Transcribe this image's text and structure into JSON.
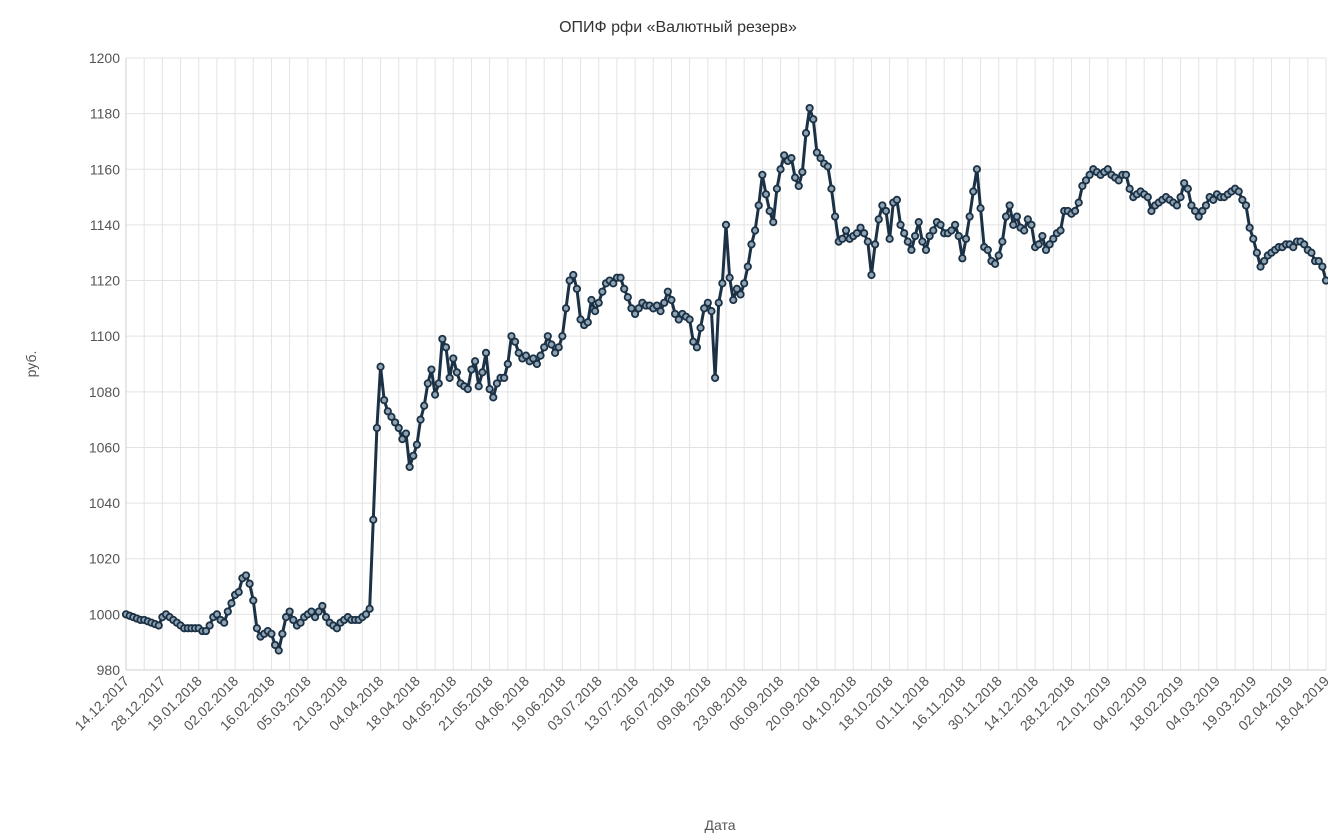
{
  "chart_data": {
    "type": "line",
    "title": "ОПИФ рфи «Валютный резерв»",
    "xlabel": "Дата",
    "ylabel": "руб.",
    "ylim": [
      980,
      1200
    ],
    "y_ticks": [
      980,
      1000,
      1020,
      1040,
      1060,
      1080,
      1100,
      1120,
      1140,
      1160,
      1180,
      1200
    ],
    "x_tick_labels": [
      "14.12.2017",
      "28.12.2017",
      "19.01.2018",
      "02.02.2018",
      "16.02.2018",
      "05.03.2018",
      "21.03.2018",
      "04.04.2018",
      "18.04.2018",
      "04.05.2018",
      "21.05.2018",
      "04.06.2018",
      "19.06.2018",
      "03.07.2018",
      "13.07.2018",
      "26.07.2018",
      "09.08.2018",
      "23.08.2018",
      "06.09.2018",
      "20.09.2018",
      "04.10.2018",
      "18.10.2018",
      "01.11.2018",
      "16.11.2018",
      "30.11.2018",
      "14.12.2018",
      "28.12.2018",
      "21.01.2019",
      "04.02.2019",
      "18.02.2019",
      "04.03.2019",
      "19.03.2019",
      "02.04.2019",
      "18.04.2019"
    ],
    "grid": true,
    "legend": "none",
    "colors": {
      "line": "#1b3145",
      "point_fill": "#8fa3b3",
      "grid": "#e3e3e3"
    },
    "series": [
      {
        "values": [
          1000,
          999.5,
          999,
          998.5,
          998,
          998,
          997.5,
          997,
          996.5,
          996,
          999,
          1000,
          999,
          998,
          997,
          996,
          995,
          995,
          995,
          995,
          995,
          994,
          994,
          996,
          999,
          1000,
          998,
          997,
          1001,
          1004,
          1007,
          1008,
          1013,
          1014,
          1011,
          1005,
          995,
          992,
          993,
          994,
          993,
          989,
          987,
          993,
          999,
          1001,
          998,
          996,
          997,
          999,
          1000,
          1001,
          999,
          1001,
          1003,
          999,
          997,
          996,
          995,
          997,
          998,
          999,
          998,
          998,
          998,
          999,
          1000,
          1002,
          1034,
          1067,
          1089,
          1077,
          1073,
          1071,
          1069,
          1067,
          1063,
          1065,
          1053,
          1057,
          1061,
          1070,
          1075,
          1083,
          1088,
          1079,
          1083,
          1099,
          1096,
          1085,
          1092,
          1087,
          1083,
          1082,
          1081,
          1088,
          1091,
          1082,
          1087,
          1094,
          1081,
          1078,
          1083,
          1085,
          1085,
          1090,
          1100,
          1098,
          1094,
          1092,
          1093,
          1091,
          1092,
          1090,
          1093,
          1096,
          1100,
          1097,
          1094,
          1096,
          1100,
          1110,
          1120,
          1122,
          1117,
          1106,
          1104,
          1105,
          1113,
          1109,
          1112,
          1116,
          1119,
          1120,
          1119,
          1121,
          1121,
          1117,
          1114,
          1110,
          1108,
          1110,
          1112,
          1111,
          1111,
          1110,
          1111,
          1109,
          1112,
          1116,
          1113,
          1108,
          1106,
          1108,
          1107,
          1106,
          1098,
          1096,
          1103,
          1110,
          1112,
          1109,
          1085,
          1112,
          1119,
          1140,
          1121,
          1113,
          1117,
          1115,
          1119,
          1125,
          1133,
          1138,
          1147,
          1158,
          1151,
          1145,
          1141,
          1153,
          1160,
          1165,
          1163,
          1164,
          1157,
          1154,
          1159,
          1173,
          1182,
          1178,
          1166,
          1164,
          1162,
          1161,
          1153,
          1143,
          1134,
          1135,
          1138,
          1135,
          1136,
          1137,
          1139,
          1137,
          1134,
          1122,
          1133,
          1142,
          1147,
          1145,
          1135,
          1148,
          1149,
          1140,
          1137,
          1134,
          1131,
          1136,
          1141,
          1134,
          1131,
          1136,
          1138,
          1141,
          1140,
          1137,
          1137,
          1138,
          1140,
          1136,
          1128,
          1135,
          1143,
          1152,
          1160,
          1146,
          1132,
          1131,
          1127,
          1126,
          1129,
          1134,
          1143,
          1147,
          1140,
          1143,
          1139,
          1138,
          1142,
          1140,
          1132,
          1133,
          1136,
          1131,
          1133,
          1135,
          1137,
          1138,
          1145,
          1145,
          1144,
          1145,
          1148,
          1154,
          1156,
          1158,
          1160,
          1159,
          1158,
          1159,
          1160,
          1158,
          1157,
          1156,
          1158,
          1158,
          1153,
          1150,
          1151,
          1152,
          1151,
          1150,
          1145,
          1147,
          1148,
          1149,
          1150,
          1149,
          1148,
          1147,
          1150,
          1155,
          1153,
          1147,
          1145,
          1143,
          1145,
          1147,
          1150,
          1149,
          1151,
          1150,
          1150,
          1151,
          1152,
          1153,
          1152,
          1149,
          1147,
          1139,
          1135,
          1130,
          1125,
          1127,
          1129,
          1130,
          1131,
          1132,
          1132,
          1133,
          1133,
          1132,
          1134,
          1134,
          1133,
          1131,
          1130,
          1127,
          1127,
          1125,
          1120
        ]
      }
    ]
  }
}
